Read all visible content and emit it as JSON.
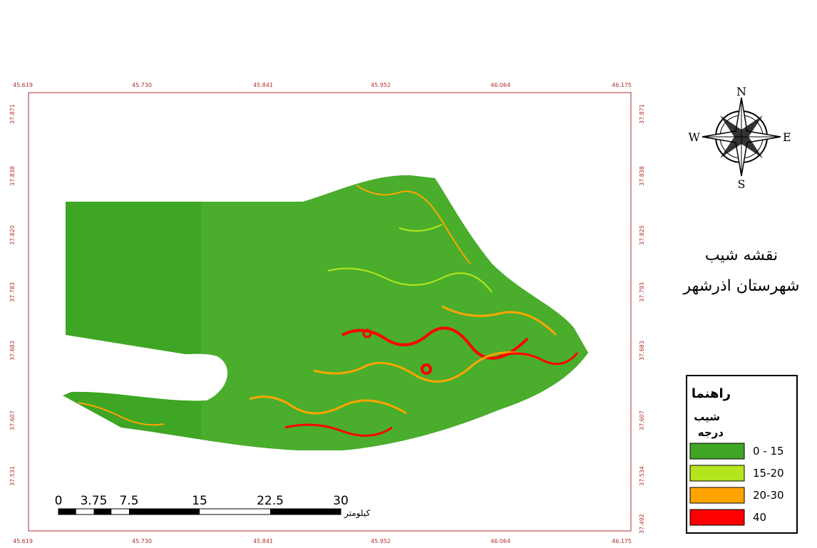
{
  "frame": {
    "top_labels": [
      "45.619",
      "45.730",
      "45.841",
      "45.952",
      "46.064",
      "46.175"
    ],
    "bottom_labels": [
      "45.619",
      "45.730",
      "45.841",
      "45.952",
      "46.064",
      "46.175"
    ],
    "left_labels": [
      "37.871",
      "37.838",
      "37.820",
      "37.783",
      "37.683",
      "37.607",
      "37.531"
    ],
    "right_labels": [
      "37.871",
      "37.838",
      "37.825",
      "37.793",
      "37.683",
      "37.607",
      "37.534",
      "37.492"
    ]
  },
  "compass": {
    "north": "N",
    "east": "E",
    "south": "S",
    "west": "W"
  },
  "title": [
    "نقشه شیب",
    "شهرستان اذرشهر"
  ],
  "legend": {
    "title": "راهنما",
    "subtitle": "شیب",
    "unit": "درجه",
    "items": [
      {
        "label": "0 - 15",
        "color": "#3fa524"
      },
      {
        "label": "15-20",
        "color": "#b5e61d"
      },
      {
        "label": "20-30",
        "color": "#ffa500"
      },
      {
        "label": "40",
        "color": "#ff0000"
      }
    ]
  },
  "scale_bar": {
    "ticks": [
      0,
      3.75,
      7.5,
      15,
      22.5,
      30
    ],
    "unit": "کیلومتر"
  }
}
